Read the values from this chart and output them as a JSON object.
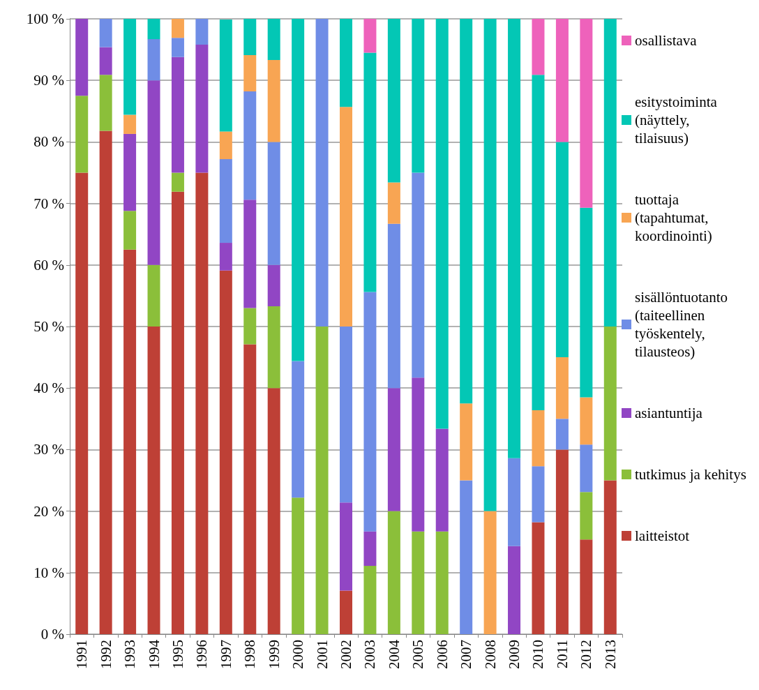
{
  "chart_data": {
    "type": "bar",
    "stacked": true,
    "categories": [
      "1991",
      "1992",
      "1993",
      "1994",
      "1995",
      "1996",
      "1997",
      "1998",
      "1999",
      "2000",
      "2001",
      "2002",
      "2003",
      "2004",
      "2005",
      "2006",
      "2007",
      "2008",
      "2009",
      "2010",
      "2011",
      "2012",
      "2013"
    ],
    "series": [
      {
        "name": "laitteistot",
        "color": "#be4036",
        "values": [
          75,
          81.8,
          62.5,
          50,
          71.9,
          75,
          59.1,
          47.1,
          40,
          0,
          0,
          7.1,
          0,
          0,
          0,
          0,
          0,
          0,
          0,
          18.2,
          30,
          15.4,
          25
        ]
      },
      {
        "name": "tutkimus ja kehitys",
        "color": "#8bbf3a",
        "values": [
          12.5,
          9.1,
          6.3,
          10,
          3.1,
          0,
          0,
          5.9,
          13.3,
          22.2,
          50,
          0,
          11.1,
          20,
          16.7,
          16.7,
          0,
          0,
          0,
          0,
          0,
          7.7,
          25
        ]
      },
      {
        "name": "asiantuntija",
        "color": "#9146c4",
        "values": [
          12.5,
          4.5,
          12.5,
          30,
          18.8,
          20.8,
          4.5,
          17.6,
          6.7,
          0,
          0,
          14.3,
          5.6,
          20,
          25,
          16.7,
          0,
          0,
          14.3,
          0,
          0,
          0,
          0
        ]
      },
      {
        "name": "sisällöntuotanto (taiteellinen työskentely, tilausteos)",
        "color": "#6f8de6",
        "values": [
          0,
          4.6,
          0,
          6.7,
          3.1,
          4.2,
          13.6,
          17.6,
          20,
          22.2,
          50,
          28.6,
          38.9,
          26.7,
          33.3,
          0,
          25,
          0,
          14.3,
          9.1,
          5,
          7.7,
          0
        ]
      },
      {
        "name": "tuottaja (tapahtumat, koordinointi)",
        "color": "#f8a553",
        "values": [
          0,
          0,
          3.1,
          0,
          3.1,
          0,
          4.5,
          5.9,
          13.3,
          0,
          0,
          35.7,
          0,
          6.7,
          0,
          0,
          12.5,
          20,
          0,
          9.1,
          10,
          7.7,
          0
        ]
      },
      {
        "name": "esitystoiminta (näyttely, tilaisuus)",
        "color": "#03c7b5",
        "values": [
          0,
          0,
          15.6,
          3.3,
          0,
          0,
          18.2,
          5.9,
          6.7,
          55.6,
          0,
          14.3,
          38.9,
          26.7,
          25,
          66.7,
          62.5,
          80,
          71.4,
          54.5,
          35,
          30.8,
          50
        ]
      },
      {
        "name": "osallistava",
        "color": "#ee62bb",
        "values": [
          0,
          0,
          0,
          0,
          0,
          0,
          0,
          0,
          0,
          0,
          0,
          0,
          5.6,
          0,
          0,
          0,
          0,
          0,
          0,
          9.1,
          20,
          30.8,
          0
        ]
      }
    ],
    "ylim": [
      0,
      100
    ],
    "yticks": [
      {
        "value": 0,
        "label": "0 %"
      },
      {
        "value": 10,
        "label": "10 %"
      },
      {
        "value": 20,
        "label": "20 %"
      },
      {
        "value": 30,
        "label": "30 %"
      },
      {
        "value": 40,
        "label": "40 %"
      },
      {
        "value": 50,
        "label": "50 %"
      },
      {
        "value": 60,
        "label": "60 %"
      },
      {
        "value": 70,
        "label": "70 %"
      },
      {
        "value": 80,
        "label": "80 %"
      },
      {
        "value": 90,
        "label": "90 %"
      },
      {
        "value": 100,
        "label": "100 %"
      }
    ],
    "grid": "y",
    "legend": "right"
  }
}
